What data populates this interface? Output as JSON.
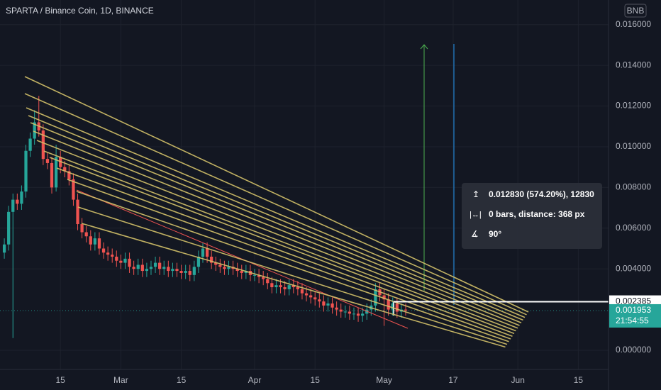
{
  "chart_data": {
    "type": "candlestick",
    "title": "SPARTA / Binance Coin, 1D, BINANCE",
    "currency": "BNB",
    "x": [
      "Feb 2",
      "Feb 3",
      "Feb 4",
      "Feb 5",
      "Feb 6",
      "Feb 7",
      "Feb 8",
      "Feb 9",
      "Feb 10",
      "Feb 11",
      "Feb 12",
      "Feb 13",
      "Feb 14",
      "Feb 15",
      "Feb 16",
      "Feb 17",
      "Feb 18",
      "Feb 19",
      "Feb 20",
      "Feb 21",
      "Feb 22",
      "Feb 23",
      "Feb 24",
      "Feb 25",
      "Feb 26",
      "Feb 27",
      "Feb 28",
      "Mar 1",
      "Mar 2",
      "Mar 3",
      "Mar 4",
      "Mar 5",
      "Mar 6",
      "Mar 7",
      "Mar 8",
      "Mar 9",
      "Mar 10",
      "Mar 11",
      "Mar 12",
      "Mar 13",
      "Mar 14",
      "Mar 15",
      "Mar 16",
      "Mar 17",
      "Mar 18",
      "Mar 19",
      "Mar 20",
      "Mar 21",
      "Mar 22",
      "Mar 23",
      "Mar 24",
      "Mar 25",
      "Mar 26",
      "Mar 27",
      "Mar 28",
      "Mar 29",
      "Mar 30",
      "Mar 31",
      "Apr 1",
      "Apr 2",
      "Apr 3",
      "Apr 4",
      "Apr 5",
      "Apr 6",
      "Apr 7",
      "Apr 8",
      "Apr 9",
      "Apr 10",
      "Apr 11",
      "Apr 12",
      "Apr 13",
      "Apr 14",
      "Apr 15",
      "Apr 16",
      "Apr 17",
      "Apr 18",
      "Apr 19",
      "Apr 20",
      "Apr 21",
      "Apr 22",
      "Apr 23",
      "Apr 24",
      "Apr 25",
      "Apr 26",
      "Apr 27",
      "Apr 28",
      "Apr 29",
      "Apr 30",
      "May 1",
      "May 2",
      "May 3",
      "May 4",
      "May 5",
      "May 6"
    ],
    "open": [
      0.0048,
      0.0052,
      0.0068,
      0.0074,
      0.0072,
      0.0078,
      0.0098,
      0.0104,
      0.0112,
      0.0108,
      0.0094,
      0.0092,
      0.008,
      0.0095,
      0.009,
      0.0088,
      0.0084,
      0.0074,
      0.0062,
      0.0058,
      0.0056,
      0.0052,
      0.0055,
      0.005,
      0.0048,
      0.0047,
      0.0046,
      0.0044,
      0.0043,
      0.0045,
      0.0041,
      0.004,
      0.0042,
      0.0039,
      0.004,
      0.0041,
      0.0043,
      0.004,
      0.0041,
      0.0039,
      0.004,
      0.0039,
      0.0038,
      0.0039,
      0.0037,
      0.0041,
      0.0046,
      0.005,
      0.0046,
      0.0043,
      0.0042,
      0.0041,
      0.004,
      0.0041,
      0.004,
      0.0039,
      0.0038,
      0.0039,
      0.0037,
      0.0037,
      0.0036,
      0.0035,
      0.0033,
      0.0031,
      0.0032,
      0.0031,
      0.003,
      0.0032,
      0.0031,
      0.003,
      0.0028,
      0.0027,
      0.0026,
      0.0025,
      0.0024,
      0.0022,
      0.0023,
      0.0021,
      0.002,
      0.0019,
      0.0019,
      0.0018,
      0.0018,
      0.0017,
      0.0018,
      0.002,
      0.0022,
      0.003,
      0.0027,
      0.0025,
      0.002,
      0.0023,
      0.0019,
      0.002
    ],
    "high": [
      0.0055,
      0.0071,
      0.0077,
      0.0077,
      0.0081,
      0.0101,
      0.0107,
      0.0118,
      0.0125,
      0.0111,
      0.0097,
      0.0095,
      0.0101,
      0.0098,
      0.0093,
      0.0091,
      0.0087,
      0.0077,
      0.0065,
      0.0061,
      0.0059,
      0.0058,
      0.0058,
      0.0053,
      0.0051,
      0.005,
      0.0049,
      0.0047,
      0.0048,
      0.0048,
      0.0044,
      0.0045,
      0.0045,
      0.0043,
      0.0044,
      0.0046,
      0.0046,
      0.0044,
      0.0044,
      0.0043,
      0.0043,
      0.0042,
      0.0042,
      0.0042,
      0.0044,
      0.0049,
      0.0053,
      0.0053,
      0.0049,
      0.0046,
      0.0045,
      0.0044,
      0.0044,
      0.0044,
      0.0043,
      0.0042,
      0.0042,
      0.0042,
      0.004,
      0.004,
      0.0039,
      0.0038,
      0.0036,
      0.0035,
      0.0035,
      0.0034,
      0.0035,
      0.0035,
      0.0034,
      0.0033,
      0.0031,
      0.003,
      0.0029,
      0.0028,
      0.0027,
      0.0026,
      0.0026,
      0.0024,
      0.0023,
      0.0022,
      0.0022,
      0.0021,
      0.0021,
      0.0021,
      0.0023,
      0.0025,
      0.0033,
      0.0033,
      0.003,
      0.0028,
      0.0026,
      0.0026,
      0.0023,
      0.0023
    ],
    "low": [
      0.0045,
      0.0049,
      0.0006,
      0.0069,
      0.0069,
      0.0075,
      0.0095,
      0.0101,
      0.0105,
      0.0091,
      0.0089,
      0.0077,
      0.0078,
      0.0087,
      0.0085,
      0.0081,
      0.0071,
      0.0059,
      0.0055,
      0.0053,
      0.0049,
      0.0049,
      0.0047,
      0.0045,
      0.0044,
      0.0043,
      0.0041,
      0.004,
      0.004,
      0.0038,
      0.0037,
      0.0037,
      0.0036,
      0.0036,
      0.0037,
      0.0038,
      0.0037,
      0.0037,
      0.0036,
      0.0036,
      0.0036,
      0.0035,
      0.0035,
      0.0034,
      0.0034,
      0.0038,
      0.0043,
      0.0043,
      0.004,
      0.0039,
      0.0038,
      0.0037,
      0.0037,
      0.0037,
      0.0036,
      0.0035,
      0.0035,
      0.0034,
      0.0034,
      0.0033,
      0.0032,
      0.003,
      0.0028,
      0.0028,
      0.0028,
      0.0027,
      0.0027,
      0.0028,
      0.0027,
      0.0025,
      0.0024,
      0.0023,
      0.0022,
      0.0021,
      0.0019,
      0.0019,
      0.0018,
      0.0017,
      0.0016,
      0.0016,
      0.0015,
      0.0015,
      0.0014,
      0.0014,
      0.0015,
      0.0017,
      0.0019,
      0.0024,
      0.0012,
      0.0017,
      0.0017,
      0.0016,
      0.0016,
      0.0017
    ],
    "close": [
      0.0052,
      0.0068,
      0.0074,
      0.0072,
      0.0078,
      0.0098,
      0.0104,
      0.0112,
      0.0108,
      0.0094,
      0.0092,
      0.008,
      0.0095,
      0.009,
      0.0088,
      0.0084,
      0.0074,
      0.0062,
      0.0058,
      0.0056,
      0.0052,
      0.0055,
      0.005,
      0.0048,
      0.0047,
      0.0046,
      0.0044,
      0.0043,
      0.0045,
      0.0041,
      0.004,
      0.0042,
      0.0039,
      0.004,
      0.0041,
      0.0043,
      0.004,
      0.0041,
      0.0039,
      0.004,
      0.0039,
      0.0038,
      0.0039,
      0.0037,
      0.0041,
      0.0046,
      0.005,
      0.0046,
      0.0043,
      0.0042,
      0.0041,
      0.004,
      0.0041,
      0.004,
      0.0039,
      0.0038,
      0.0039,
      0.0037,
      0.0037,
      0.0036,
      0.0035,
      0.0033,
      0.0031,
      0.0032,
      0.0031,
      0.003,
      0.0032,
      0.0031,
      0.003,
      0.0028,
      0.0027,
      0.0026,
      0.0025,
      0.0024,
      0.0022,
      0.0023,
      0.0021,
      0.002,
      0.0019,
      0.0019,
      0.0018,
      0.0018,
      0.0017,
      0.0018,
      0.002,
      0.0022,
      0.003,
      0.0027,
      0.0025,
      0.002,
      0.0023,
      0.0019,
      0.002,
      0.001953
    ],
    "up_color": "#26a69a",
    "down_color": "#ef5350",
    "xlim": [
      "Feb 1",
      "Jun 22"
    ],
    "xticks": [
      {
        "value": "Feb 15",
        "label": "15"
      },
      {
        "value": "Mar 1",
        "label": "Mar"
      },
      {
        "value": "Mar 15",
        "label": "15"
      },
      {
        "value": "Apr 1",
        "label": "Apr"
      },
      {
        "value": "Apr 15",
        "label": "15"
      },
      {
        "value": "May 1",
        "label": "May"
      },
      {
        "value": "May 17",
        "label": "17"
      },
      {
        "value": "Jun 1",
        "label": "Jun"
      },
      {
        "value": "Jun 15",
        "label": "15"
      }
    ],
    "ylim": [
      -0.00094,
      0.01721
    ],
    "yticks": [
      {
        "value": 0,
        "label": "0.000000"
      },
      {
        "value": 0.004,
        "label": "0.004000"
      },
      {
        "value": 0.006,
        "label": "0.006000"
      },
      {
        "value": 0.008,
        "label": "0.008000"
      },
      {
        "value": 0.01,
        "label": "0.010000"
      },
      {
        "value": 0.012,
        "label": "0.012000"
      },
      {
        "value": 0.014,
        "label": "0.014000"
      },
      {
        "value": 0.016,
        "label": "0.016000"
      }
    ],
    "grid": true,
    "price_line": 0.002385,
    "countdown": "21:54:55",
    "measure": {
      "price": "0.012830 (574.20%), 12830",
      "bars": "0 bars, distance: 368 px",
      "angle": "90°"
    }
  }
}
